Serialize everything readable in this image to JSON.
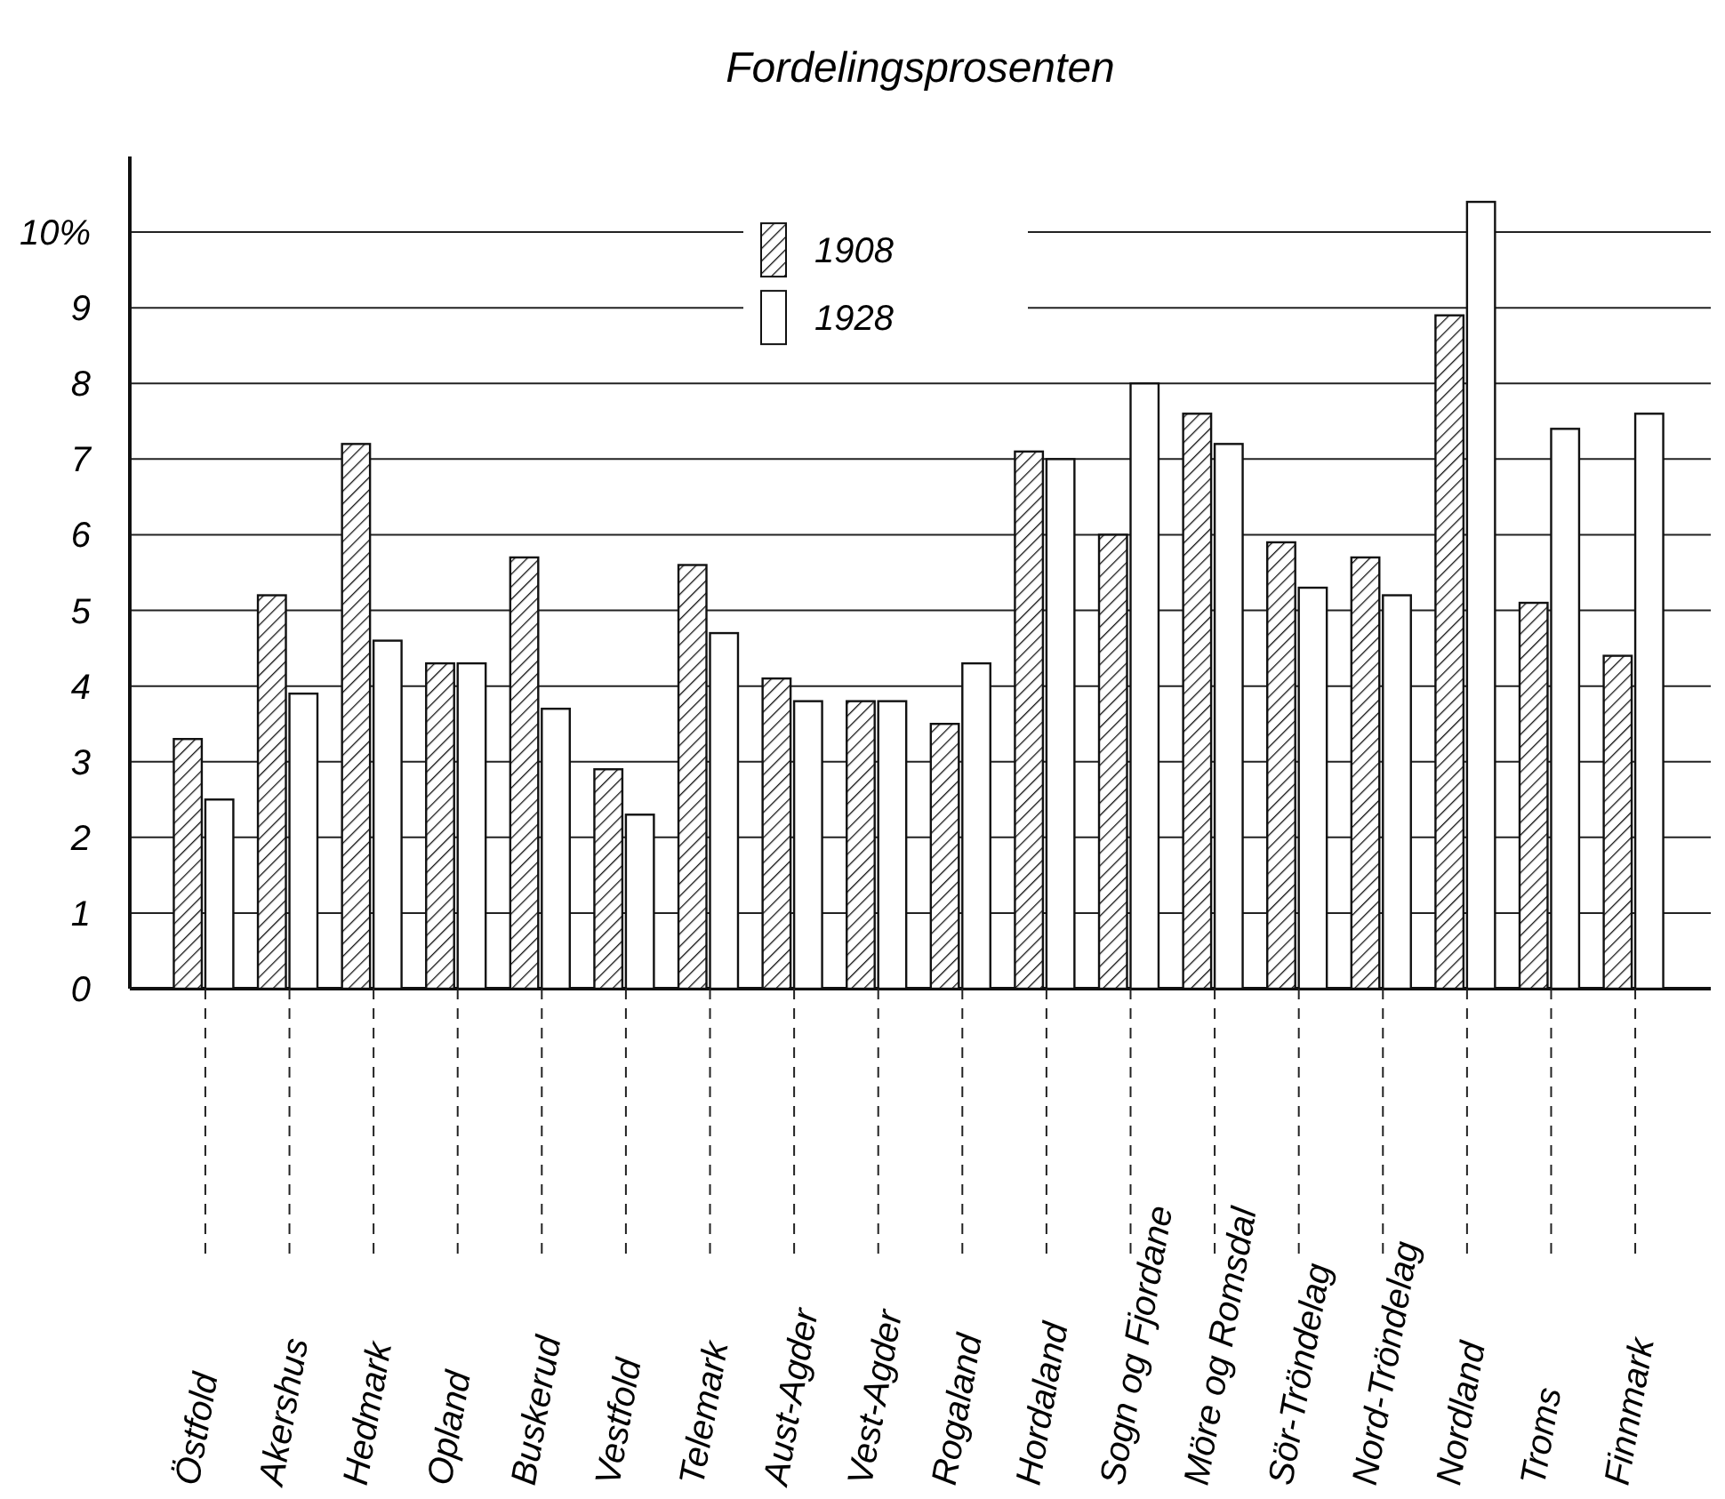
{
  "chart_data": {
    "type": "bar",
    "title": "Fordelingsprosenten",
    "categories": [
      "Östfold",
      "Akershus",
      "Hedmark",
      "Opland",
      "Buskerud",
      "Vestfold",
      "Telemark",
      "Aust-Agder",
      "Vest-Agder",
      "Rogaland",
      "Hordaland",
      "Sogn og Fjordane",
      "Möre og Romsdal",
      "Sör-Tröndelag",
      "Nord-Tröndelag",
      "Nordland",
      "Troms",
      "Finnmark"
    ],
    "series": [
      {
        "name": "1908",
        "color": "#111111",
        "values": [
          3.3,
          5.2,
          7.2,
          4.3,
          5.7,
          2.9,
          5.6,
          4.1,
          3.8,
          3.5,
          7.1,
          6.0,
          7.6,
          5.9,
          5.7,
          8.9,
          5.1,
          4.4
        ]
      },
      {
        "name": "1928",
        "color": "#ffffff",
        "values": [
          2.5,
          3.9,
          4.6,
          4.3,
          3.7,
          2.3,
          4.7,
          3.8,
          3.8,
          4.3,
          7.0,
          8.0,
          7.2,
          5.3,
          5.2,
          10.4,
          7.4,
          7.6
        ]
      }
    ],
    "ylim": [
      0,
      11
    ],
    "yticks": [
      0,
      1,
      2,
      3,
      4,
      5,
      6,
      7,
      8,
      9,
      {
        "value": 10,
        "label": "10%"
      }
    ],
    "grid": "y",
    "legend": "top"
  }
}
